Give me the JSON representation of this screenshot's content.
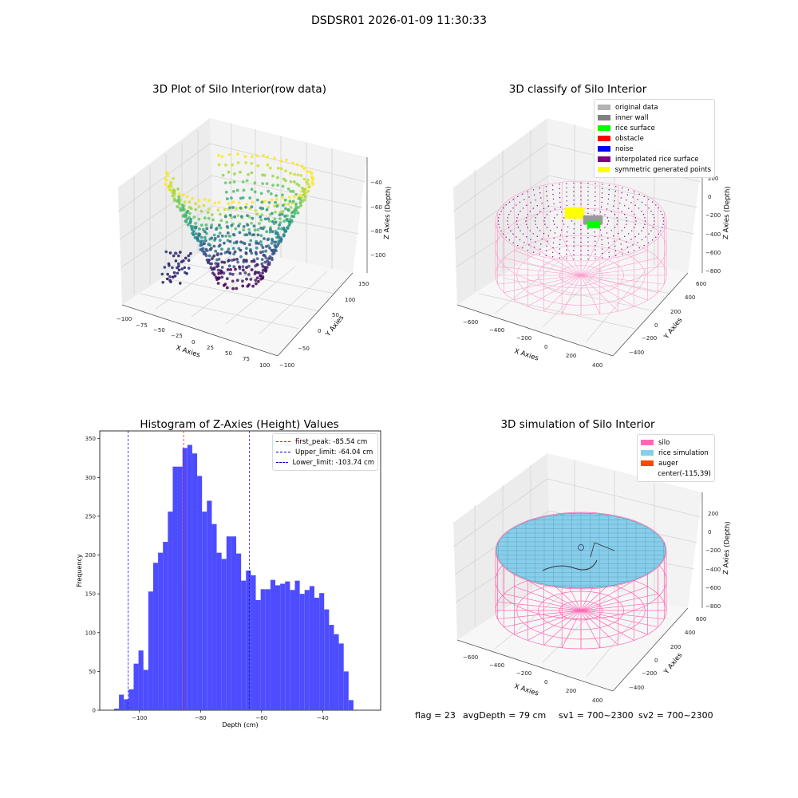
{
  "suptitle": "DSDSR01 2026-01-09 11:30:33",
  "footer": {
    "flag": "flag = 23",
    "avg": "avgDepth = 79 cm",
    "sv1": "sv1 = 700~2300",
    "sv2": "sv2 = 700~2300"
  },
  "colors": {
    "hist_bar": "#4d4dff",
    "first_peak": "#ff0000",
    "upper_limit": "#0000cc",
    "lower_limit": "#0000cc",
    "silo": "#ff69b4",
    "rice": "#87ceeb",
    "auger": "#ff4500"
  },
  "chart_data": [
    {
      "type": "scatter",
      "title": "3D Plot of Silo Interior(row data)",
      "xlabel": "X Axies",
      "ylabel": "Y Axies",
      "zlabel": "Z Axies (Depth)",
      "x_ticks": [
        "−100",
        "−75",
        "−50",
        "−25",
        "0",
        "25",
        "50",
        "75",
        "100"
      ],
      "y_ticks": [
        "−100",
        "−50",
        "0",
        "50",
        "100",
        "150"
      ],
      "z_ticks": [
        "−40",
        "−60",
        "−80",
        "−100"
      ],
      "xlim": [
        -100,
        100
      ],
      "ylim": [
        -100,
        150
      ],
      "zlim": [
        -115,
        -30
      ],
      "colormap": "viridis"
    },
    {
      "type": "scatter",
      "title": "3D classify of Silo Interior",
      "xlabel": "X Axies",
      "ylabel": "Y Axies",
      "zlabel": "Z Axies (Depth)",
      "x_ticks": [
        "−600",
        "−400",
        "−200",
        "0",
        "200",
        "400"
      ],
      "y_ticks": [
        "−400",
        "−200",
        "0",
        "200",
        "400",
        "600"
      ],
      "z_ticks": [
        "200",
        "0",
        "−200",
        "−400",
        "−600",
        "−800"
      ],
      "legend": [
        {
          "label": "original data",
          "color": "#b3b3b3"
        },
        {
          "label": "inner wall",
          "color": "#808080"
        },
        {
          "label": "rice surface",
          "color": "#00ff00"
        },
        {
          "label": "obstacle",
          "color": "#ff0000"
        },
        {
          "label": "noise",
          "color": "#0000ff"
        },
        {
          "label": "interpolated rice surface",
          "color": "#800080"
        },
        {
          "label": "symmetric generated points",
          "color": "#ffff00"
        }
      ]
    },
    {
      "type": "bar",
      "title": "Histogram of Z-Axies (Height) Values",
      "xlabel": "Depth (cm)",
      "ylabel": "Frequency",
      "xlim": [
        -113,
        -21
      ],
      "ylim": [
        0,
        360
      ],
      "x_ticks": [
        -100,
        -80,
        -60,
        -40
      ],
      "y_ticks": [
        0,
        50,
        100,
        150,
        200,
        250,
        300,
        350
      ],
      "bin_start": -108.3,
      "bin_width": 1.6,
      "values": [
        2,
        20,
        14,
        27,
        60,
        77,
        52,
        153,
        190,
        203,
        217,
        256,
        314,
        314,
        338,
        342,
        331,
        302,
        256,
        270,
        240,
        203,
        195,
        224,
        224,
        202,
        167,
        180,
        174,
        142,
        156,
        156,
        168,
        161,
        163,
        166,
        155,
        167,
        150,
        155,
        160,
        145,
        151,
        130,
        110,
        98,
        86,
        50,
        13
      ],
      "lines": [
        {
          "label": "first_peak: -85.54 cm",
          "x": -85.54,
          "color": "#ff0000"
        },
        {
          "label": "Upper_limit: -64.04 cm",
          "x": -64.04,
          "color": "#0000cc"
        },
        {
          "label": "Lower_limit: -103.74 cm",
          "x": -103.74,
          "color": "#0000cc"
        }
      ]
    },
    {
      "type": "area",
      "title": "3D simulation of Silo Interior",
      "xlabel": "X Axies",
      "ylabel": "Y Axies",
      "zlabel": "Z Axies (Depth)",
      "x_ticks": [
        "−600",
        "−400",
        "−200",
        "0",
        "200",
        "400"
      ],
      "y_ticks": [
        "−400",
        "−200",
        "0",
        "200",
        "400",
        "600"
      ],
      "z_ticks": [
        "200",
        "0",
        "−200",
        "−400",
        "−600",
        "−800"
      ],
      "legend": [
        {
          "label": "silo",
          "color": "#ff69b4"
        },
        {
          "label": "rice simulation",
          "color": "#87ceeb"
        },
        {
          "label": "auger",
          "color": "#ff4500"
        },
        {
          "label": "center(-115,39)",
          "color": ""
        }
      ]
    }
  ]
}
